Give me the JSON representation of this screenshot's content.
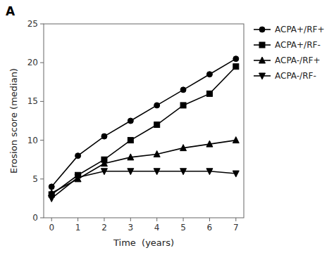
{
  "chart_data": {
    "type": "line",
    "annotations": [
      "A"
    ],
    "x_label": "Time  (years)",
    "y_label": "Erosion score (median)",
    "x": [
      0,
      1,
      2,
      3,
      4,
      5,
      6,
      7
    ],
    "series": [
      {
        "name": "ACPA+/RF+",
        "color": "#000000",
        "marker": "circle",
        "values": [
          4.0,
          8.0,
          10.5,
          12.5,
          14.5,
          16.5,
          18.5,
          20.5
        ]
      },
      {
        "name": "ACPA+/RF-",
        "color": "#000000",
        "marker": "square",
        "values": [
          3.0,
          5.5,
          7.5,
          10.0,
          12.0,
          14.5,
          16.0,
          19.5
        ]
      },
      {
        "name": "ACPA-/RF+",
        "color": "#000000",
        "marker": "triangle-up",
        "values": [
          3.2,
          5.0,
          7.0,
          7.8,
          8.2,
          9.0,
          9.5,
          10.0
        ]
      },
      {
        "name": "ACPA-/RF-",
        "color": "#000000",
        "marker": "triangle-down",
        "values": [
          2.5,
          5.2,
          6.0,
          6.0,
          6.0,
          6.0,
          6.0,
          5.7
        ]
      }
    ],
    "xlim": [
      -0.3,
      7.3
    ],
    "ylim": [
      0,
      25
    ],
    "xticks": [
      0,
      1,
      2,
      3,
      4,
      5,
      6,
      7
    ],
    "yticks": [
      0,
      5,
      10,
      15,
      20,
      25
    ],
    "grid": false,
    "legend": "right"
  }
}
